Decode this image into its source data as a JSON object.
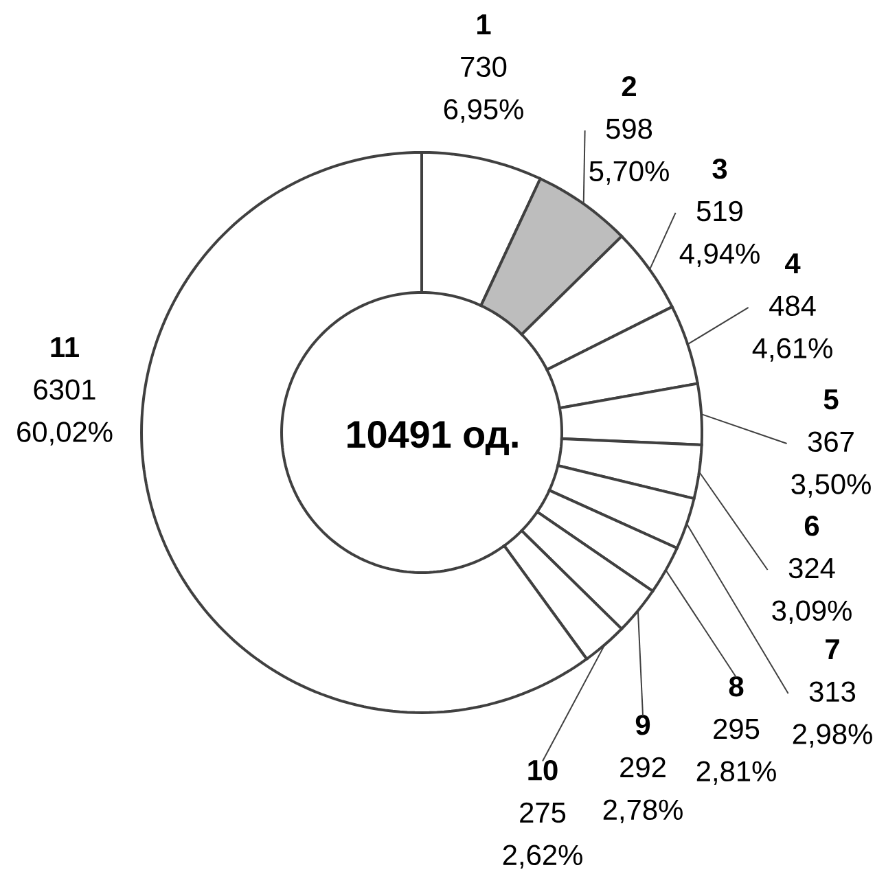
{
  "chart_data": {
    "type": "donut",
    "categories": [
      "1",
      "2",
      "3",
      "4",
      "5",
      "6",
      "7",
      "8",
      "9",
      "10",
      "11"
    ],
    "values": [
      730,
      598,
      519,
      484,
      367,
      324,
      313,
      295,
      292,
      275,
      6301
    ],
    "value_labels": [
      "730 6,95%",
      "598 5,70%",
      "519 4,94%",
      "484 4,61%",
      "367 3,50%",
      "324 3,09%",
      "313 2,98%",
      "295 2,81%",
      "292 2,78%",
      "275 2,62%",
      "6301 60,02%"
    ],
    "colors": [
      "#ffffff",
      "#bdbdbd",
      "#ffffff",
      "#ffffff",
      "#ffffff",
      "#ffffff",
      "#ffffff",
      "#ffffff",
      "#ffffff",
      "#ffffff",
      "#ffffff"
    ],
    "annotations": [
      "10491 од."
    ]
  }
}
